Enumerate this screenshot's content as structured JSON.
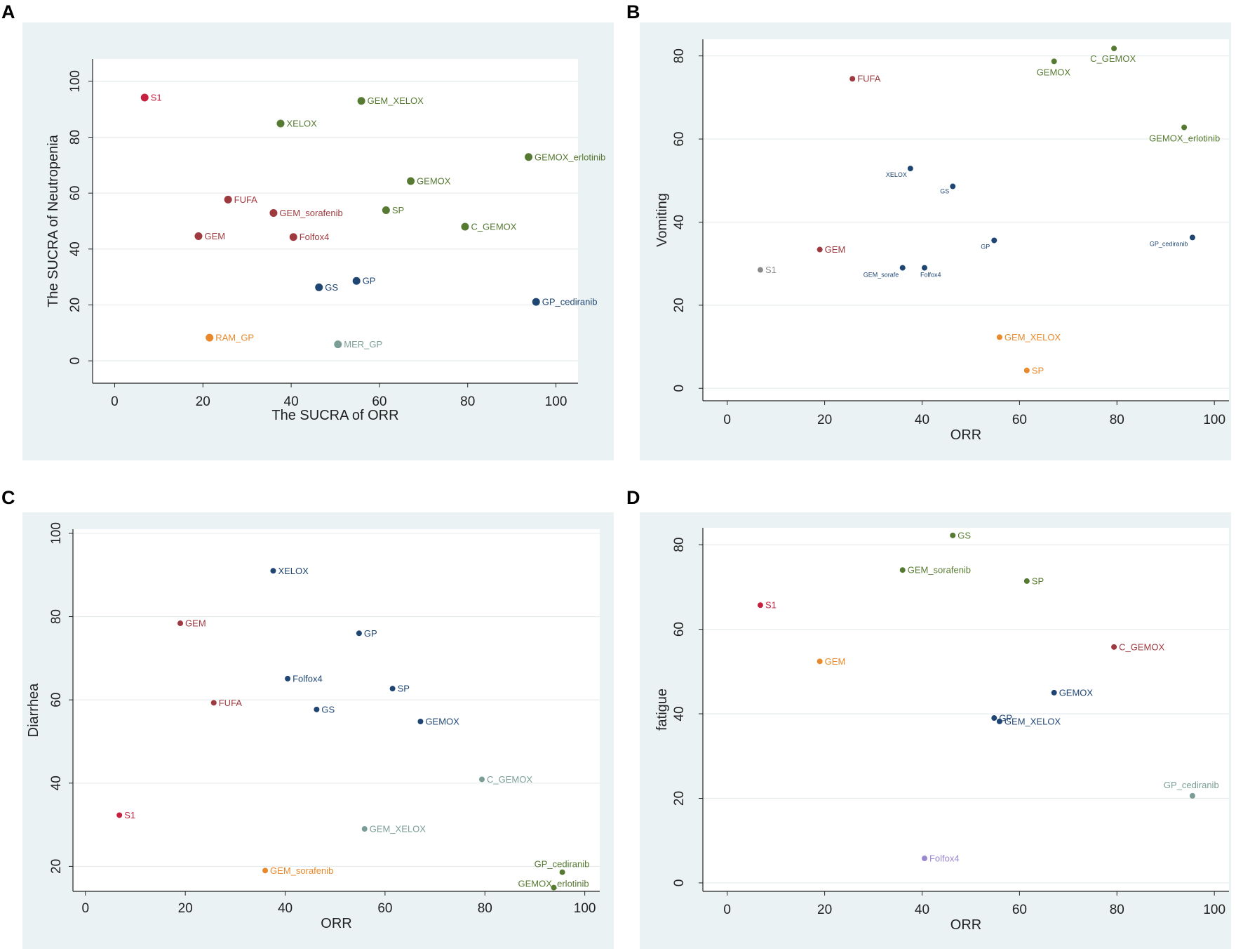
{
  "figure": {
    "letters": [
      "A",
      "B",
      "C",
      "D"
    ]
  },
  "chart_data": [
    {
      "type": "scatter",
      "title": "",
      "xlabel": "The SUCRA of ORR",
      "ylabel": "The SUCRA of Neutropenia",
      "xlim": [
        -5,
        105
      ],
      "ylim": [
        -8,
        108
      ],
      "xticks": [
        0,
        20,
        40,
        60,
        80,
        100
      ],
      "yticks": [
        0,
        20,
        40,
        60,
        80,
        100
      ],
      "points": [
        {
          "label": "S1",
          "x": 6.8,
          "y": 94.2,
          "color": "#c62040"
        },
        {
          "label": "GEM_XELOX",
          "x": 55.9,
          "y": 93.0,
          "color": "#577a32"
        },
        {
          "label": "XELOX",
          "x": 37.6,
          "y": 84.9,
          "color": "#577a32"
        },
        {
          "label": "GEMOX_erlotinib",
          "x": 93.8,
          "y": 72.9,
          "color": "#577a32"
        },
        {
          "label": "GEMOX",
          "x": 67.1,
          "y": 64.3,
          "color": "#577a32"
        },
        {
          "label": "FUFA",
          "x": 25.7,
          "y": 57.7,
          "color": "#9e3a3f"
        },
        {
          "label": "SP",
          "x": 61.5,
          "y": 53.9,
          "color": "#577a32"
        },
        {
          "label": "GEM_sorafenib",
          "x": 36.0,
          "y": 52.9,
          "color": "#9e3a3f"
        },
        {
          "label": "C_GEMOX",
          "x": 79.4,
          "y": 48.0,
          "color": "#577a32"
        },
        {
          "label": "GEM",
          "x": 19.0,
          "y": 44.6,
          "color": "#9e3a3f"
        },
        {
          "label": "Folfox4",
          "x": 40.5,
          "y": 44.3,
          "color": "#9e3a3f"
        },
        {
          "label": "GP",
          "x": 54.8,
          "y": 28.6,
          "color": "#1f4672"
        },
        {
          "label": "GS",
          "x": 46.3,
          "y": 26.3,
          "color": "#1f4672"
        },
        {
          "label": "GP_cediranib",
          "x": 95.5,
          "y": 21.1,
          "color": "#1f4672"
        },
        {
          "label": "RAM_GP",
          "x": 21.5,
          "y": 8.3,
          "color": "#e8892b"
        },
        {
          "label": "MER_GP",
          "x": 50.6,
          "y": 5.9,
          "color": "#7a9e96"
        }
      ]
    },
    {
      "type": "scatter",
      "title": "",
      "xlabel": "ORR",
      "ylabel": "Vomiting",
      "xlim": [
        -5,
        103
      ],
      "ylim": [
        -3,
        84
      ],
      "xticks": [
        0,
        20,
        40,
        60,
        80,
        100
      ],
      "yticks": [
        0,
        20,
        40,
        60,
        80
      ],
      "points": [
        {
          "label": "C_GEMOX",
          "x": 79.4,
          "y": 81.8,
          "color": "#577a32"
        },
        {
          "label": "GEMOX",
          "x": 67.1,
          "y": 78.7,
          "color": "#577a32"
        },
        {
          "label": "FUFA",
          "x": 25.7,
          "y": 74.5,
          "color": "#9e3a3f"
        },
        {
          "label": "GEMOX_erlotinib",
          "x": 93.8,
          "y": 62.8,
          "color": "#577a32"
        },
        {
          "label": "XELOX",
          "x": 37.6,
          "y": 52.9,
          "color": "#1f4672"
        },
        {
          "label": "GS",
          "x": 46.3,
          "y": 48.6,
          "color": "#1f4672"
        },
        {
          "label": "GP",
          "x": 54.8,
          "y": 35.6,
          "color": "#1f4672"
        },
        {
          "label": "GP_cediranib",
          "x": 95.5,
          "y": 36.3,
          "color": "#1f4672"
        },
        {
          "label": "GEM",
          "x": 19.0,
          "y": 33.4,
          "color": "#9e3a3f"
        },
        {
          "label": "GEM_sorafe",
          "x": 36.0,
          "y": 29.0,
          "color": "#1f4672"
        },
        {
          "label": "Folfox4",
          "x": 40.5,
          "y": 29.0,
          "color": "#1f4672"
        },
        {
          "label": "S1",
          "x": 6.8,
          "y": 28.5,
          "color": "#8a8a8a"
        },
        {
          "label": "GEM_XELOX",
          "x": 55.9,
          "y": 12.3,
          "color": "#e8892b"
        },
        {
          "label": "SP",
          "x": 61.5,
          "y": 4.3,
          "color": "#e8892b"
        }
      ]
    },
    {
      "type": "scatter",
      "title": "",
      "xlabel": "ORR",
      "ylabel": "Diarrhea",
      "xlim": [
        -2.5,
        103
      ],
      "ylim": [
        14,
        101
      ],
      "xticks": [
        0,
        20,
        40,
        60,
        80,
        100
      ],
      "yticks": [
        20,
        40,
        60,
        80,
        100
      ],
      "points": [
        {
          "label": "XELOX",
          "x": 37.6,
          "y": 91.0,
          "color": "#1f4672"
        },
        {
          "label": "GEM",
          "x": 19.0,
          "y": 78.4,
          "color": "#9e3a3f"
        },
        {
          "label": "GP",
          "x": 54.8,
          "y": 76.0,
          "color": "#1f4672"
        },
        {
          "label": "Folfox4",
          "x": 40.5,
          "y": 65.1,
          "color": "#1f4672"
        },
        {
          "label": "SP",
          "x": 61.5,
          "y": 62.7,
          "color": "#1f4672"
        },
        {
          "label": "FUFA",
          "x": 25.7,
          "y": 59.3,
          "color": "#9e3a3f"
        },
        {
          "label": "GS",
          "x": 46.3,
          "y": 57.7,
          "color": "#1f4672"
        },
        {
          "label": "GEMOX",
          "x": 67.1,
          "y": 54.8,
          "color": "#1f4672"
        },
        {
          "label": "C_GEMOX",
          "x": 79.4,
          "y": 40.9,
          "color": "#7a9e96"
        },
        {
          "label": "S1",
          "x": 6.8,
          "y": 32.3,
          "color": "#c62040"
        },
        {
          "label": "GEM_XELOX",
          "x": 55.9,
          "y": 29.0,
          "color": "#7a9e96"
        },
        {
          "label": "GEM_sorafenib",
          "x": 36.0,
          "y": 19.0,
          "color": "#e8892b"
        },
        {
          "label": "GP_cediranib",
          "x": 95.5,
          "y": 18.6,
          "color": "#577a32"
        },
        {
          "label": "GEMOX_erlotinib",
          "x": 93.8,
          "y": 14.9,
          "color": "#577a32"
        }
      ]
    },
    {
      "type": "scatter",
      "title": "",
      "xlabel": "ORR",
      "ylabel": "fatigue",
      "xlim": [
        -5,
        103
      ],
      "ylim": [
        -2,
        84
      ],
      "xticks": [
        0,
        20,
        40,
        60,
        80,
        100
      ],
      "yticks": [
        0,
        20,
        40,
        60,
        80
      ],
      "points": [
        {
          "label": "GS",
          "x": 46.3,
          "y": 82.2,
          "color": "#577a32"
        },
        {
          "label": "GEM_sorafenib",
          "x": 36.0,
          "y": 74.0,
          "color": "#577a32"
        },
        {
          "label": "SP",
          "x": 61.5,
          "y": 71.4,
          "color": "#577a32"
        },
        {
          "label": "S1",
          "x": 6.8,
          "y": 65.7,
          "color": "#c62040"
        },
        {
          "label": "C_GEMOX",
          "x": 79.4,
          "y": 55.8,
          "color": "#9e3a3f"
        },
        {
          "label": "GEM",
          "x": 19.0,
          "y": 52.4,
          "color": "#e8892b"
        },
        {
          "label": "GEMOX",
          "x": 67.1,
          "y": 45.0,
          "color": "#1f4672"
        },
        {
          "label": "GP",
          "x": 54.8,
          "y": 39.0,
          "color": "#1f4672"
        },
        {
          "label": "GEM_XELOX",
          "x": 55.9,
          "y": 38.2,
          "color": "#1f4672"
        },
        {
          "label": "GP_cediranib",
          "x": 95.5,
          "y": 20.6,
          "color": "#7a9e96"
        },
        {
          "label": "Folfox4",
          "x": 40.5,
          "y": 5.8,
          "color": "#9a88d0"
        }
      ]
    }
  ]
}
